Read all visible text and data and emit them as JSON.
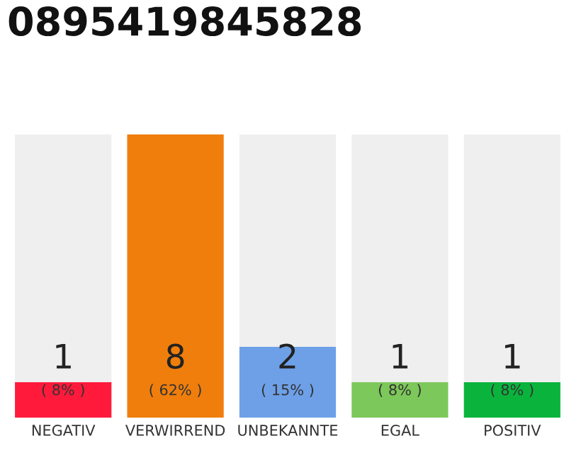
{
  "chart_data": {
    "type": "bar",
    "title": "0895419845828",
    "stacked": true,
    "tick_labels": "x",
    "grid": false,
    "legend": false,
    "categories": [
      "NEGATIV",
      "VERWIRREND",
      "UNBEKANNTE",
      "EGAL",
      "POSITIV"
    ],
    "ylim": [
      0,
      8
    ],
    "series": [
      {
        "colors": [
          "#ff1a3c",
          "#f07e0c",
          "#6ea0e8",
          "#7dc85a",
          "#0ab43c"
        ],
        "values": [
          1,
          8,
          2,
          1,
          1
        ],
        "value_labels": [
          "1",
          "8",
          "2",
          "1",
          "1"
        ]
      },
      {
        "color": "#efefef",
        "values": [
          7,
          0,
          6,
          7,
          7
        ]
      }
    ],
    "annotations": [
      "( 8% )",
      "( 62% )",
      "( 15% )",
      "( 8% )",
      "( 8% )"
    ]
  }
}
